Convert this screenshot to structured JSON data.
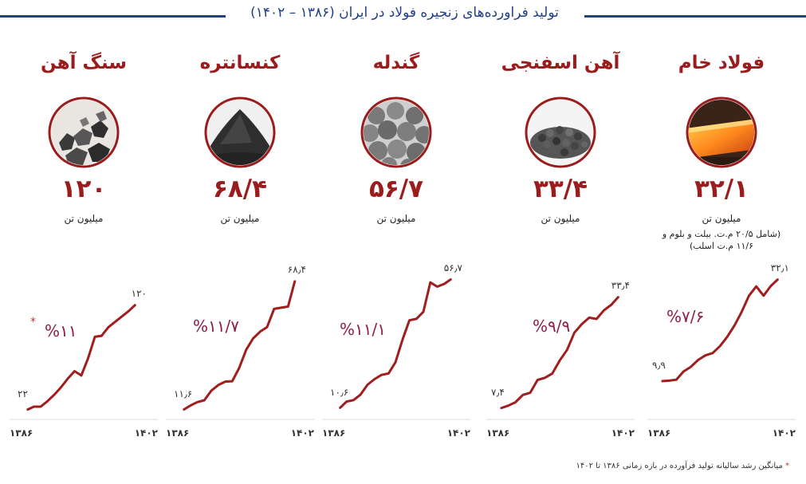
{
  "header": {
    "title": "تولید فراورده‌های زنجیره فولاد در ایران (۱۳۸۶ – ۱۴۰۲)"
  },
  "colors": {
    "accent": "#9b1c1c",
    "line": "#a01e1e",
    "header": "#1f3f87",
    "cagr": "#8e1d4a"
  },
  "panels": [
    {
      "name": "سنگ آهن",
      "total": "۱۲۰",
      "unit": "میلیون تن",
      "note": "",
      "cagr": "%۱۱",
      "cagr_star": "*",
      "start_label": "۲۲",
      "end_label": "۱۲۰",
      "icon": "iron-ore-icon"
    },
    {
      "name": "کنسانتره",
      "total": "۶۸/۴",
      "unit": "میلیون تن",
      "note": "",
      "cagr": "%۱۱/۷",
      "cagr_star": "",
      "start_label": "۱۱٫۶",
      "end_label": "۶۸٫۴",
      "icon": "concentrate-icon"
    },
    {
      "name": "گندله",
      "total": "۵۶/۷",
      "unit": "میلیون تن",
      "note": "",
      "cagr": "%۱۱/۱",
      "cagr_star": "",
      "start_label": "۱۰٫۶",
      "end_label": "۵۶٫۷",
      "icon": "pellet-icon"
    },
    {
      "name": "آهن اسفنجی",
      "total": "۳۳/۴",
      "unit": "میلیون تن",
      "note": "",
      "cagr": "%۹/۹",
      "cagr_star": "",
      "start_label": "۷٫۴",
      "end_label": "۳۳٫۴",
      "icon": "sponge-iron-icon"
    },
    {
      "name": "فولاد خام",
      "total": "۳۲/۱",
      "unit": "میلیون تن",
      "note": "(شامل ۲۰/۵ م.ت. بیلت و بلوم و ۱۱/۶ م.ت اسلب)",
      "cagr": "%۷/۶",
      "cagr_star": "",
      "start_label": "۹٫۹",
      "end_label": "۳۲٫۱",
      "icon": "crude-steel-icon"
    }
  ],
  "axis": {
    "start": "۱۳۸۶",
    "end": "۱۴۰۲"
  },
  "footnote": {
    "star": "*",
    "text": "میانگین رشد سالیانه تولید فرآورده در بازه زمانی ۱۳۸۶ تا ۱۴۰۲"
  },
  "chart_data": [
    {
      "type": "line",
      "title": "سنگ آهن",
      "x": [
        1386,
        1387,
        1388,
        1389,
        1390,
        1391,
        1392,
        1393,
        1394,
        1395,
        1396,
        1397,
        1398,
        1399,
        1400,
        1401,
        1402
      ],
      "values": [
        22,
        25,
        25,
        30,
        36,
        43,
        51,
        58,
        54,
        70,
        90,
        91,
        99,
        104,
        109,
        114,
        120
      ],
      "xlim": [
        1386,
        1402
      ]
    },
    {
      "type": "line",
      "title": "کنسانتره",
      "x": [
        1386,
        1387,
        1388,
        1389,
        1390,
        1391,
        1392,
        1393,
        1394,
        1395,
        1396,
        1397,
        1398,
        1399,
        1400,
        1401,
        1402
      ],
      "values": [
        11.6,
        13.5,
        15,
        15.8,
        20,
        22.5,
        24,
        24.2,
        30,
        38,
        43,
        46,
        48,
        56,
        56.5,
        57,
        68.4
      ],
      "xlim": [
        1386,
        1402
      ]
    },
    {
      "type": "line",
      "title": "گندله",
      "x": [
        1386,
        1387,
        1388,
        1389,
        1390,
        1391,
        1392,
        1393,
        1394,
        1395,
        1396,
        1397,
        1398,
        1399,
        1400,
        1401,
        1402
      ],
      "values": [
        10.6,
        13,
        13.5,
        15.5,
        19,
        21,
        22.5,
        23,
        27,
        35,
        42,
        42.5,
        45,
        55.5,
        54,
        55,
        56.7
      ],
      "xlim": [
        1386,
        1402
      ]
    },
    {
      "type": "line",
      "title": "آهن اسفنجی",
      "x": [
        1386,
        1387,
        1388,
        1389,
        1390,
        1391,
        1392,
        1393,
        1394,
        1395,
        1396,
        1397,
        1398,
        1399,
        1400,
        1401,
        1402
      ],
      "values": [
        7.4,
        8,
        8.8,
        10.5,
        11,
        14,
        14.5,
        15.5,
        18.5,
        21,
        25,
        27,
        28.5,
        28.2,
        30.2,
        31.5,
        33.4
      ],
      "xlim": [
        1386,
        1402
      ]
    },
    {
      "type": "line",
      "title": "فولاد خام",
      "x": [
        1386,
        1387,
        1388,
        1389,
        1390,
        1391,
        1392,
        1393,
        1394,
        1395,
        1396,
        1397,
        1398,
        1399,
        1400,
        1401,
        1402
      ],
      "values": [
        9.9,
        10,
        10.2,
        12,
        13,
        14.5,
        15.5,
        16,
        17.5,
        19.5,
        22,
        25,
        28.5,
        30.5,
        28.5,
        30.6,
        32.1
      ],
      "xlim": [
        1386,
        1402
      ]
    }
  ]
}
